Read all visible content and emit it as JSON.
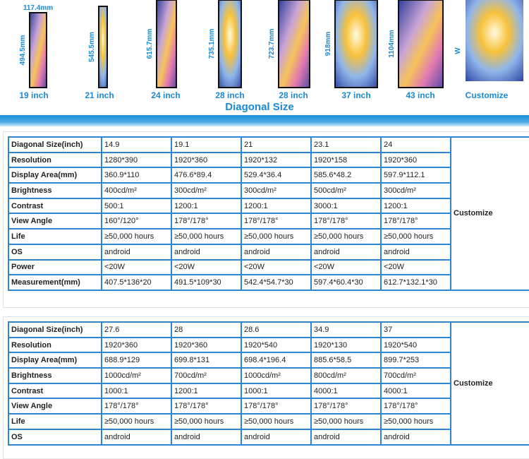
{
  "displays": [
    {
      "size": "19 inch",
      "height": "494.5mm",
      "width": "117.4mm"
    },
    {
      "size": "21 inch",
      "height": "545.5mm"
    },
    {
      "size": "24 inch",
      "height": "615.7mm"
    },
    {
      "size": "28 inch",
      "height": "735.1mm"
    },
    {
      "size": "28 inch",
      "height": "723.7mm"
    },
    {
      "size": "37 inch",
      "height": "918mm"
    },
    {
      "size": "43 inch",
      "height": "1104mm"
    },
    {
      "size": "Customize",
      "height": "W"
    }
  ],
  "section_title": "Diagonal Size",
  "tables": [
    {
      "customize": "Customize",
      "rows": [
        [
          "Diagonal Size(inch)",
          "14.9",
          "19.1",
          "21",
          "23.1",
          "24"
        ],
        [
          "Resolution",
          "1280*390",
          "1920*360",
          "1920*132",
          "1920*158",
          "1920*360"
        ],
        [
          "Display Area(mm)",
          "360.9*110",
          "476.6*89.4",
          "529.4*36.4",
          "585.6*48.2",
          "597.9*112.1"
        ],
        [
          "Brightness",
          "400cd/m²",
          "300cd/m²",
          "300cd/m²",
          "500cd/m²",
          "300cd/m²"
        ],
        [
          "Contrast",
          "500:1",
          "1200:1",
          "1200:1",
          "3000:1",
          "1200:1"
        ],
        [
          "View Angle",
          "160°/120°",
          "178°/178°",
          "178°/178°",
          "178°/178°",
          "178°/178°"
        ],
        [
          "Life",
          "≥50,000 hours",
          "≥50,000 hours",
          "≥50,000 hours",
          "≥50,000 hours",
          "≥50,000 hours"
        ],
        [
          "OS",
          "android",
          "android",
          "android",
          "android",
          "android"
        ],
        [
          "Power",
          "<20W",
          "<20W",
          "<20W",
          "<20W",
          "<20W"
        ],
        [
          "Measurement(mm)",
          "407.5*136*20",
          "491.5*109*30",
          "542.4*54.7*30",
          "597.4*60.4*30",
          "612.7*132.1*30"
        ]
      ]
    },
    {
      "customize": "Customize",
      "rows": [
        [
          "Diagonal Size(inch)",
          "27.6",
          "28",
          "28.6",
          "34.9",
          "37"
        ],
        [
          "Resolution",
          "1920*360",
          "1920*360",
          "1920*540",
          "1920*130",
          "1920*540"
        ],
        [
          "Display Area(mm)",
          "688.9*129",
          "699.8*131",
          "698.4*196.4",
          "885.6*58.5",
          "899.7*253"
        ],
        [
          "Brightness",
          "1000cd/m²",
          "700cd/m²",
          "1000cd/m²",
          "800cd/m²",
          "700cd/m²"
        ],
        [
          "Contrast",
          "1000:1",
          "1200:1",
          "1000:1",
          "4000:1",
          "4000:1"
        ],
        [
          "View Angle",
          "178°/178°",
          "178°/178°",
          "178°/178°",
          "178°/178°",
          "178°/178°"
        ],
        [
          "Life",
          "≥50,000 hours",
          "≥50,000 hours",
          "≥50,000 hours",
          "≥50,000 hours",
          "≥50,000 hours"
        ],
        [
          "OS",
          "android",
          "android",
          "android",
          "android",
          "android"
        ]
      ]
    }
  ]
}
